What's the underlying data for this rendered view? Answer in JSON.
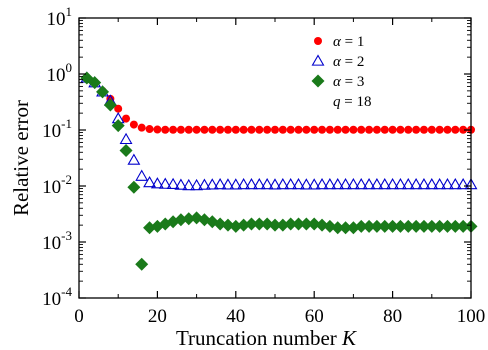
{
  "chart_data": {
    "type": "scatter",
    "xlabel": "Truncation number",
    "xlabel_var": "K",
    "ylabel": "Relative error",
    "xlim": [
      0,
      100
    ],
    "ylim_log10": [
      -4,
      1
    ],
    "y_scale": "log",
    "x_ticks": [
      0,
      20,
      40,
      60,
      80,
      100
    ],
    "x_tick_labels": [
      "0",
      "20",
      "40",
      "60",
      "80",
      "100"
    ],
    "y_tick_exponents": [
      1,
      0,
      -1,
      -2,
      -3,
      -4
    ],
    "y_tick_labels": [
      {
        "base": "10",
        "exp": "1"
      },
      {
        "base": "10",
        "exp": "0"
      },
      {
        "base": "10",
        "exp": "-1"
      },
      {
        "base": "10",
        "exp": "-2"
      },
      {
        "base": "10",
        "exp": "-3"
      },
      {
        "base": "10",
        "exp": "-4"
      }
    ],
    "grid": false,
    "legend_position": "top-right",
    "legend_note": "q = 18",
    "series": [
      {
        "name": "α = 1",
        "name_var": "α",
        "name_value": " = 1",
        "marker": "circle",
        "color": "#ff0000",
        "x": [
          2,
          4,
          6,
          8,
          10,
          12,
          14,
          16,
          18,
          20,
          22,
          24,
          26,
          28,
          30,
          32,
          34,
          36,
          38,
          40,
          42,
          44,
          46,
          48,
          50,
          52,
          54,
          56,
          58,
          60,
          62,
          64,
          66,
          68,
          70,
          72,
          74,
          76,
          78,
          80,
          82,
          84,
          86,
          88,
          90,
          92,
          94,
          96,
          98,
          100
        ],
        "y": [
          0.85,
          0.72,
          0.5,
          0.36,
          0.24,
          0.16,
          0.125,
          0.11,
          0.104,
          0.102,
          0.101,
          0.101,
          0.101,
          0.101,
          0.101,
          0.101,
          0.101,
          0.101,
          0.101,
          0.101,
          0.101,
          0.101,
          0.101,
          0.101,
          0.101,
          0.101,
          0.101,
          0.101,
          0.101,
          0.101,
          0.101,
          0.101,
          0.101,
          0.101,
          0.101,
          0.101,
          0.101,
          0.101,
          0.101,
          0.101,
          0.101,
          0.101,
          0.101,
          0.101,
          0.101,
          0.101,
          0.101,
          0.101,
          0.101,
          0.101
        ]
      },
      {
        "name": "α = 2",
        "name_var": "α",
        "name_value": " = 2",
        "marker": "triangle-open",
        "color": "#0000cc",
        "x": [
          2,
          4,
          6,
          8,
          10,
          12,
          14,
          16,
          18,
          20,
          22,
          24,
          26,
          28,
          30,
          32,
          34,
          36,
          38,
          40,
          42,
          44,
          46,
          48,
          50,
          52,
          54,
          56,
          58,
          60,
          62,
          64,
          66,
          68,
          70,
          72,
          74,
          76,
          78,
          80,
          82,
          84,
          86,
          88,
          90,
          92,
          94,
          96,
          98,
          100
        ],
        "y": [
          0.85,
          0.7,
          0.48,
          0.33,
          0.16,
          0.068,
          0.029,
          0.015,
          0.0115,
          0.011,
          0.0108,
          0.0107,
          0.0104,
          0.0102,
          0.0102,
          0.0104,
          0.0105,
          0.0106,
          0.0105,
          0.0105,
          0.0106,
          0.0106,
          0.0106,
          0.0106,
          0.0105,
          0.0106,
          0.0106,
          0.0106,
          0.0105,
          0.0105,
          0.0106,
          0.0106,
          0.0106,
          0.0106,
          0.0106,
          0.0106,
          0.0106,
          0.0106,
          0.0106,
          0.0106,
          0.0106,
          0.0106,
          0.0106,
          0.0106,
          0.0106,
          0.0106,
          0.0106,
          0.0106,
          0.0106,
          0.0106
        ]
      },
      {
        "name": "α = 3",
        "name_var": "α",
        "name_value": " = 3",
        "marker": "diamond",
        "color": "#1a7a1a",
        "x": [
          2,
          4,
          6,
          8,
          10,
          12,
          14,
          16,
          18,
          20,
          22,
          24,
          26,
          28,
          30,
          32,
          34,
          36,
          38,
          40,
          42,
          44,
          46,
          48,
          50,
          52,
          54,
          56,
          58,
          60,
          62,
          64,
          66,
          68,
          70,
          72,
          74,
          76,
          78,
          80,
          82,
          84,
          86,
          88,
          90,
          92,
          94,
          96,
          98,
          100
        ],
        "y": [
          0.85,
          0.7,
          0.48,
          0.28,
          0.12,
          0.043,
          0.0095,
          0.0004,
          0.0018,
          0.0019,
          0.0021,
          0.0023,
          0.0025,
          0.0026,
          0.0027,
          0.0025,
          0.0023,
          0.0021,
          0.002,
          0.0019,
          0.002,
          0.0021,
          0.0021,
          0.0021,
          0.002,
          0.002,
          0.0021,
          0.0021,
          0.0021,
          0.0021,
          0.002,
          0.0019,
          0.0018,
          0.0018,
          0.0018,
          0.0019,
          0.0019,
          0.0019,
          0.0019,
          0.0019,
          0.0019,
          0.0019,
          0.0019,
          0.0019,
          0.0019,
          0.0019,
          0.0019,
          0.0019,
          0.0019,
          0.0019
        ]
      }
    ]
  }
}
